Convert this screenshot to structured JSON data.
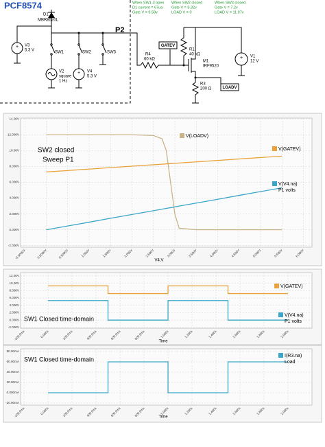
{
  "schematic": {
    "title": "PCF8574",
    "bus": "P2",
    "components": [
      {
        "ref": "D1",
        "lines": [
          "MBR8520L"
        ]
      },
      {
        "ref": "V3",
        "lines": [
          "5.3 V"
        ]
      },
      {
        "ref": "V2",
        "lines": [
          "square",
          "1 Hz"
        ]
      },
      {
        "ref": "V4",
        "lines": [
          "5.3 V"
        ]
      },
      {
        "ref": "R4",
        "lines": [
          "60 kΩ"
        ]
      },
      {
        "ref": "R1",
        "lines": [
          "40 kΩ"
        ]
      },
      {
        "ref": "M1",
        "lines": [
          "IRF9520"
        ]
      },
      {
        "ref": "V1",
        "lines": [
          "12 V"
        ]
      },
      {
        "ref": "R3",
        "lines": [
          "200 Ω"
        ]
      }
    ],
    "switches": [
      "SW1",
      "SW2",
      "SW3"
    ],
    "net_labels": [
      "GATEV",
      "LOADV"
    ],
    "notes": [
      [
        "When SW1-3 open",
        "D1 current = 67ua",
        "Gate V = 9.58v"
      ],
      [
        "When SW2 closed",
        "Gate V = 9.32v",
        "LOAD V = 0"
      ],
      [
        "When SW3 closed",
        "Gate V = 7.2v",
        "LOAD V = 11.97v"
      ]
    ]
  },
  "chart_data": [
    {
      "type": "line",
      "annotations": [
        "SW2 closed",
        "Sweep P1"
      ],
      "xlabel": "V4,V",
      "grid": true,
      "x": [
        0,
        0.5,
        1,
        1.5,
        2,
        2.5,
        2.7,
        2.8,
        2.9,
        3.0,
        3.1,
        3.5,
        4,
        4.5,
        5,
        5.5
      ],
      "series": [
        {
          "name": "V(LOADV)",
          "color": "#c9b389",
          "values": [
            12,
            12,
            12,
            12,
            12,
            11.9,
            11.5,
            10,
            6,
            2,
            0.2,
            0,
            0,
            0,
            0,
            0
          ]
        },
        {
          "name": "V(GATEV)",
          "color": "#e9a33c",
          "values": [
            7.3,
            7.48,
            7.66,
            7.85,
            8.03,
            8.21,
            8.28,
            8.32,
            8.35,
            8.39,
            8.43,
            8.57,
            8.75,
            8.94,
            9.12,
            9.3
          ]
        },
        {
          "name": "V(V4.na)",
          "legend_sub": "P1 volts",
          "color": "#3ba6c8",
          "values": [
            0,
            0.48,
            0.96,
            1.45,
            1.93,
            2.41,
            2.6,
            2.7,
            2.79,
            2.89,
            2.99,
            3.37,
            3.85,
            4.34,
            4.82,
            5.3
          ]
        }
      ],
      "xlim": [
        -0.6,
        6.2
      ],
      "xticks": [
        {
          "value": -0.5,
          "label": "-0.5000V"
        },
        {
          "value": 0,
          "label": "0.0000V"
        },
        {
          "value": 0.5,
          "label": "0.5000V"
        },
        {
          "value": 1,
          "label": "1.000V"
        },
        {
          "value": 1.5,
          "label": "1.500V"
        },
        {
          "value": 2,
          "label": "2.000V"
        },
        {
          "value": 2.5,
          "label": "2.500V"
        },
        {
          "value": 3,
          "label": "3.000V"
        },
        {
          "value": 3.5,
          "label": "3.500V"
        },
        {
          "value": 4,
          "label": "4.000V"
        },
        {
          "value": 4.5,
          "label": "4.500V"
        },
        {
          "value": 5,
          "label": "5.000V"
        },
        {
          "value": 5.5,
          "label": "5.500V"
        },
        {
          "value": 6,
          "label": "6.000V"
        }
      ],
      "ylim": [
        -2.2,
        14.1
      ],
      "yticks": [
        {
          "value": -2,
          "label": "-2.000V"
        },
        {
          "value": 0,
          "label": "0.000V"
        },
        {
          "value": 2,
          "label": "2.000V"
        },
        {
          "value": 4,
          "label": "4.000V"
        },
        {
          "value": 6,
          "label": "6.000V"
        },
        {
          "value": 8,
          "label": "8.000V"
        },
        {
          "value": 10,
          "label": "10.00V"
        },
        {
          "value": 12,
          "label": "12.000V"
        },
        {
          "value": 14,
          "label": "14.00V"
        }
      ]
    },
    {
      "type": "line",
      "annotations": [
        "SW1 Closed  time-domain"
      ],
      "xlabel": "Time",
      "grid": true,
      "x": [
        0,
        0.5,
        0.5,
        1.0,
        1.0,
        1.5,
        1.5,
        2.0
      ],
      "series": [
        {
          "name": "V(GATEV)",
          "color": "#e9a33c",
          "values": [
            9.3,
            9.3,
            7.2,
            7.2,
            9.3,
            9.3,
            7.2,
            7.2
          ]
        },
        {
          "name": "V(V4.na)",
          "legend_sub": "P1 volts",
          "color": "#3ba6c8",
          "values": [
            5.3,
            5.3,
            0,
            0,
            5.3,
            5.3,
            0,
            0
          ]
        }
      ],
      "xlim": [
        -0.229,
        2.2
      ],
      "xticks": [
        {
          "value": -0.2,
          "label": "-200.0ms"
        },
        {
          "value": 0,
          "label": "0.000s"
        },
        {
          "value": 0.2,
          "label": "200.0ms"
        },
        {
          "value": 0.4,
          "label": "400.0ms"
        },
        {
          "value": 0.6,
          "label": "600.0ms"
        },
        {
          "value": 0.8,
          "label": "800.0ms"
        },
        {
          "value": 1,
          "label": "1.000s"
        },
        {
          "value": 1.2,
          "label": "1.200s"
        },
        {
          "value": 1.4,
          "label": "1.400s"
        },
        {
          "value": 1.6,
          "label": "1.600s"
        },
        {
          "value": 1.8,
          "label": "1.800s"
        },
        {
          "value": 2,
          "label": "2.000s"
        }
      ],
      "ylim": [
        -2.2,
        12.9
      ],
      "yticks": [
        {
          "value": -2,
          "label": "-2.000V"
        },
        {
          "value": 0,
          "label": "0.000V"
        },
        {
          "value": 2,
          "label": "2.000V"
        },
        {
          "value": 4,
          "label": "4.000V"
        },
        {
          "value": 6,
          "label": "6.000V"
        },
        {
          "value": 8,
          "label": "8.000V"
        },
        {
          "value": 10,
          "label": "10.00V"
        },
        {
          "value": 12,
          "label": "12.00V"
        }
      ]
    },
    {
      "type": "line",
      "annotations": [
        "SW1 Closed  time-domain"
      ],
      "xlabel": "Time",
      "grid": true,
      "x": [
        0,
        0.5,
        0.5,
        1.0,
        1.0,
        1.5,
        1.5,
        2.0
      ],
      "series": [
        {
          "name": "I(R3.na)",
          "legend_sub": "Load",
          "color": "#3ba6c8",
          "values": [
            0,
            0,
            60,
            60,
            0,
            0,
            60,
            60
          ]
        }
      ],
      "xlim": [
        -0.229,
        2.2
      ],
      "xticks": [
        {
          "value": -0.2,
          "label": "-200.0ms"
        },
        {
          "value": 0,
          "label": "0.000s"
        },
        {
          "value": 0.2,
          "label": "200.0ms"
        },
        {
          "value": 0.4,
          "label": "400.0ms"
        },
        {
          "value": 0.6,
          "label": "600.0ms"
        },
        {
          "value": 0.8,
          "label": "800.0ms"
        },
        {
          "value": 1,
          "label": "1.000s"
        },
        {
          "value": 1.2,
          "label": "1.200s"
        },
        {
          "value": 1.4,
          "label": "1.400s"
        },
        {
          "value": 1.6,
          "label": "1.600s"
        },
        {
          "value": 1.8,
          "label": "1.800s"
        },
        {
          "value": 2,
          "label": "2.000s"
        }
      ],
      "ylim": [
        -24,
        85.3
      ],
      "yticks": [
        {
          "value": -20,
          "label": "-20.00mA"
        },
        {
          "value": 0,
          "label": "0.000mA"
        },
        {
          "value": 20,
          "label": "20.00mA"
        },
        {
          "value": 40,
          "label": "40.00mA"
        },
        {
          "value": 60,
          "label": "60.00mA"
        },
        {
          "value": 80,
          "label": "80.00mA"
        }
      ]
    }
  ]
}
